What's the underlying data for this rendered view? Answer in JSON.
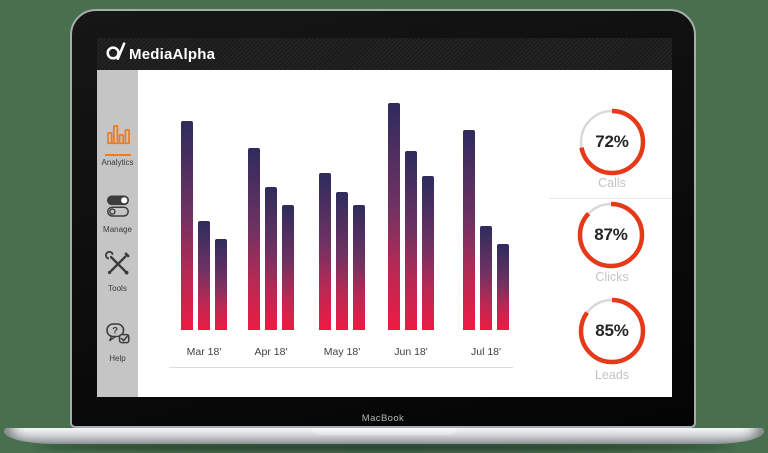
{
  "background_color": "#48704f",
  "device": {
    "label": "MacBook"
  },
  "app": {
    "brand": {
      "name": "MediaAlpha"
    },
    "topbar_color": "#1b1b1b",
    "sidebar": {
      "active_accent": "#ee7b1e",
      "items": [
        {
          "label": "Analytics",
          "icon": "bar-chart-icon",
          "active": true
        },
        {
          "label": "Manage",
          "icon": "toggle-switches-icon",
          "active": false
        },
        {
          "label": "Tools",
          "icon": "crossed-tools-icon",
          "active": false
        },
        {
          "label": "Help",
          "icon": "help-chat-icon",
          "active": false
        }
      ]
    }
  },
  "chart_data": [
    {
      "type": "bar",
      "title": "",
      "categories": [
        "Mar 18'",
        "Apr 18'",
        "May 18'",
        "Jun 18'",
        "Jul 18'"
      ],
      "series": [
        {
          "name": "bar-1",
          "values": [
            92,
            80,
            69,
            100,
            88
          ]
        },
        {
          "name": "bar-2",
          "values": [
            48,
            63,
            61,
            79,
            46
          ]
        },
        {
          "name": "bar-3",
          "values": [
            40,
            55,
            55,
            68,
            38
          ]
        }
      ],
      "ylim": [
        0,
        100
      ],
      "grid": false,
      "legend": "none",
      "bar_gradient_top": "#2e2c5d",
      "bar_gradient_mid": "#b42a55",
      "bar_gradient_bottom": "#ee1b43"
    },
    {
      "type": "donut-gauges",
      "ring_color": "#e6391a",
      "track_color": "#d9d9d9",
      "items": [
        {
          "label": "Calls",
          "value": 72,
          "display": "72%"
        },
        {
          "label": "Clicks",
          "value": 87,
          "display": "87%"
        },
        {
          "label": "Leads",
          "value": 85,
          "display": "85%"
        }
      ]
    }
  ]
}
